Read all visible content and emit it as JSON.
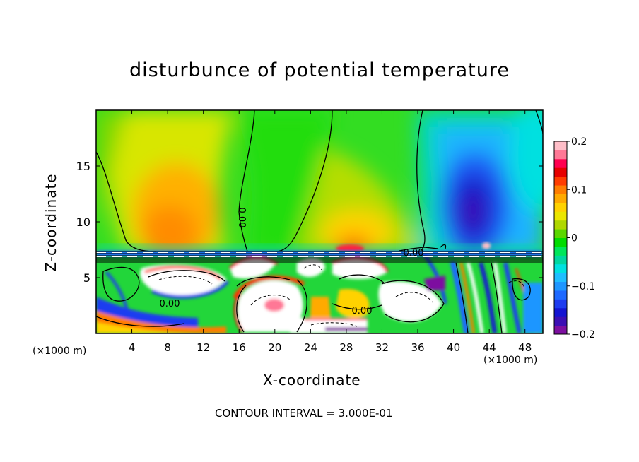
{
  "title": "disturbunce of potential temperature",
  "chart_data": {
    "type": "heatmap",
    "title": "disturbunce of potential temperature",
    "xlabel": "X-coordinate",
    "ylabel": "Z-coordinate",
    "x_unit_left": "(×1000 m)",
    "x_unit_right": "(×1000 m)",
    "xlim": [
      0,
      50
    ],
    "ylim": [
      0,
      20
    ],
    "x_ticks": [
      4,
      8,
      12,
      16,
      20,
      24,
      28,
      32,
      36,
      40,
      44,
      48
    ],
    "y_ticks": [
      5,
      10,
      15
    ],
    "colorbar": {
      "range": [
        -0.2,
        0.2
      ],
      "tick_labels": [
        "0.2",
        "0.1",
        "0",
        "−0.1",
        "−0.2"
      ],
      "tick_values": [
        0.2,
        0.1,
        0,
        -0.1,
        -0.2
      ],
      "colors": [
        "#7d0fa0",
        "#3c0fb4",
        "#1414d2",
        "#1e3cf0",
        "#1e69ff",
        "#1e96ff",
        "#1ebeff",
        "#00e1e1",
        "#00d7a0",
        "#00e65a",
        "#00dc00",
        "#5ad700",
        "#afd700",
        "#ebe600",
        "#ffd200",
        "#ffaa00",
        "#ff7d00",
        "#ff3c00",
        "#e60000",
        "#ff0050",
        "#ff7896",
        "#ffbec8"
      ]
    },
    "contour_label": "0.00",
    "contour_interval_text": "CONTOUR INTERVAL = 3.000E-01",
    "field_regions_upper": [
      {
        "x_range": [
          4,
          14
        ],
        "z_range": [
          7.5,
          16
        ],
        "value": 0.08
      },
      {
        "x_range": [
          6,
          12
        ],
        "z_range": [
          8,
          12
        ],
        "value": 0.12
      },
      {
        "x_range": [
          15,
          24
        ],
        "z_range": [
          7.5,
          20
        ],
        "value": 0.0
      },
      {
        "x_range": [
          26,
          31
        ],
        "z_range": [
          7.5,
          10
        ],
        "value": 0.15
      },
      {
        "x_range": [
          38,
          46
        ],
        "z_range": [
          7.5,
          17
        ],
        "value": -0.14
      },
      {
        "x_range": [
          41,
          44
        ],
        "z_range": [
          8,
          12
        ],
        "value": -0.2
      }
    ]
  }
}
